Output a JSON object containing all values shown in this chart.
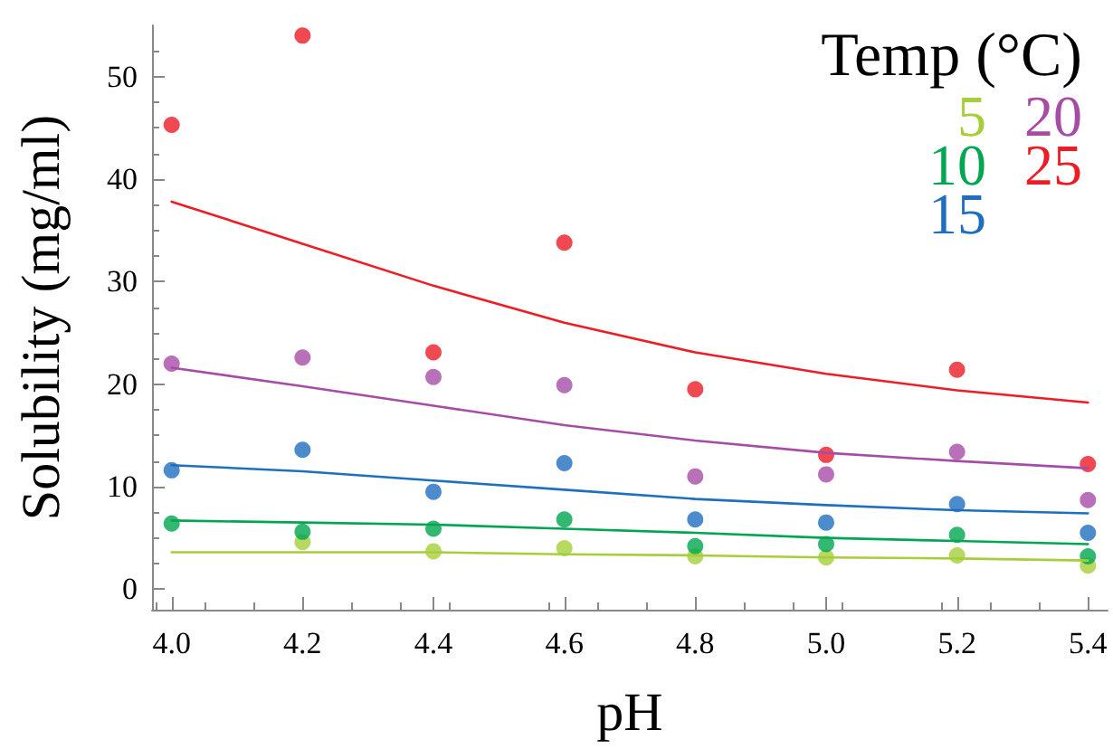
{
  "chart_data": {
    "type": "scatter",
    "xlabel": "pH",
    "ylabel": "Solubility (mg/ml)",
    "legend_title": "Temp (°C)",
    "legend": "top right",
    "grid": false,
    "marker": "circle",
    "x": [
      4.0,
      4.2,
      4.4,
      4.6,
      4.8,
      5.0,
      5.2,
      5.4
    ],
    "xlim": [
      3.97,
      5.43
    ],
    "ylim": [
      -2,
      55
    ],
    "xticks": [
      {
        "value": 4.0,
        "label": "4.0"
      },
      4.2,
      4.4,
      4.6,
      4.8,
      {
        "value": 5.0,
        "label": "5.0"
      },
      5.2,
      5.4
    ],
    "yticks": [
      0,
      10,
      20,
      30,
      40,
      50
    ],
    "series": [
      {
        "name": "5",
        "color": "#a6ce39",
        "values": [
          null,
          4.6,
          3.7,
          4.0,
          3.2,
          3.1,
          3.3,
          2.3
        ]
      },
      {
        "name": "10",
        "color": "#00a650",
        "values": [
          6.4,
          5.6,
          5.9,
          6.8,
          4.2,
          4.4,
          5.3,
          3.2
        ]
      },
      {
        "name": "15",
        "color": "#1f6fc1",
        "values": [
          11.6,
          13.6,
          9.5,
          12.3,
          6.8,
          6.5,
          8.3,
          5.5
        ]
      },
      {
        "name": "20",
        "color": "#a64ca6",
        "values": [
          22.0,
          22.6,
          20.7,
          19.9,
          11.0,
          11.2,
          13.4,
          8.7
        ]
      },
      {
        "name": "25",
        "color": "#ee1c25",
        "values": [
          45.3,
          54.0,
          23.1,
          33.8,
          19.5,
          13.1,
          21.4,
          12.2
        ]
      },
      {
        "type": "line",
        "marker": "none",
        "color": "#a6ce39",
        "values": [
          3.6,
          3.6,
          3.6,
          3.4,
          3.3,
          3.1,
          3.0,
          2.8
        ]
      },
      {
        "type": "line",
        "marker": "none",
        "color": "#00a650",
        "values": [
          6.7,
          6.5,
          6.3,
          5.9,
          5.5,
          5.0,
          4.7,
          4.4
        ]
      },
      {
        "type": "line",
        "marker": "none",
        "color": "#1f6fc1",
        "values": [
          12.1,
          11.5,
          10.6,
          9.7,
          8.8,
          8.2,
          7.7,
          7.4
        ]
      },
      {
        "type": "line",
        "marker": "none",
        "color": "#a64ca6",
        "values": [
          21.6,
          19.8,
          17.9,
          16.0,
          14.5,
          13.3,
          12.5,
          11.8
        ]
      },
      {
        "type": "line",
        "marker": "none",
        "color": "#ee1c25",
        "values": [
          37.8,
          33.7,
          29.6,
          26.0,
          23.1,
          21.0,
          19.4,
          18.2
        ]
      }
    ]
  }
}
